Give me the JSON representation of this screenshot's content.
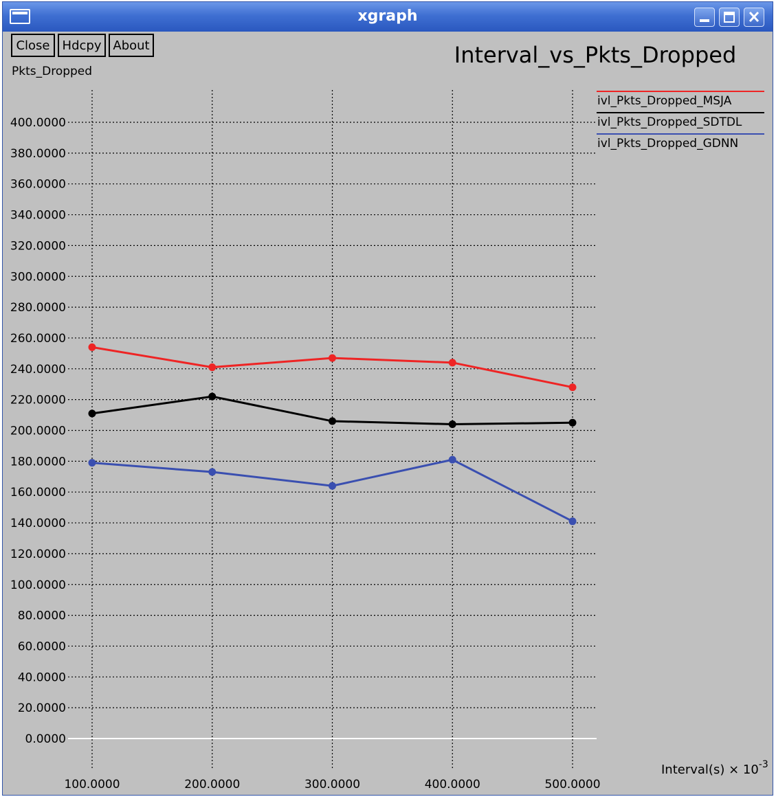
{
  "window": {
    "title": "xgraph"
  },
  "toolbar": {
    "close_label": "Close",
    "hdcpy_label": "Hdcpy",
    "about_label": "About"
  },
  "chart_data": {
    "type": "line",
    "title": "Interval_vs_Pkts_Dropped",
    "ylabel": "Pkts_Dropped",
    "xlabel": "Interval(s) × 10",
    "xlabel_exponent": "-3",
    "x": [
      100,
      200,
      300,
      400,
      500
    ],
    "x_tick_labels": [
      "100.0000",
      "200.0000",
      "300.0000",
      "400.0000",
      "500.0000"
    ],
    "ylim": [
      0,
      400
    ],
    "y_ticks": [
      0,
      20,
      40,
      60,
      80,
      100,
      120,
      140,
      160,
      180,
      200,
      220,
      240,
      260,
      280,
      300,
      320,
      340,
      360,
      380,
      400
    ],
    "y_tick_labels": [
      "0.0000",
      "20.0000",
      "40.0000",
      "60.0000",
      "80.0000",
      "100.0000",
      "120.0000",
      "140.0000",
      "160.0000",
      "180.0000",
      "200.0000",
      "220.0000",
      "240.0000",
      "260.0000",
      "280.0000",
      "300.0000",
      "320.0000",
      "340.0000",
      "360.0000",
      "380.0000",
      "400.0000"
    ],
    "grid": true,
    "legend_position": "top-right",
    "series": [
      {
        "name": "ivl_Pkts_Dropped_MSJA",
        "color": "#ee2424",
        "values": [
          254,
          241,
          247,
          244,
          228
        ]
      },
      {
        "name": "ivl_Pkts_Dropped_SDTDL",
        "color": "#000000",
        "values": [
          211,
          222,
          206,
          204,
          205
        ]
      },
      {
        "name": "ivl_Pkts_Dropped_GDNN",
        "color": "#3a4fb0",
        "values": [
          179,
          173,
          164,
          181,
          141
        ]
      }
    ],
    "colors": {
      "background": "#c0c0c0",
      "grid": "#000000",
      "zero_line": "#ffffff"
    }
  }
}
